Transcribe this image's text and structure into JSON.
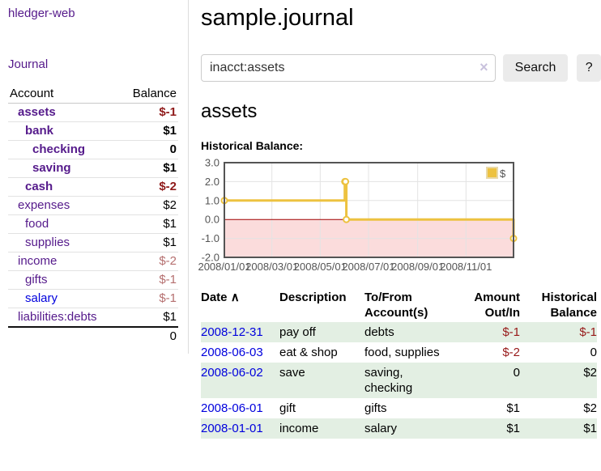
{
  "sidebar": {
    "app_title": "hledger-web",
    "journal_link": "Journal",
    "accounts_table": {
      "account_header": "Account",
      "balance_header": "Balance",
      "rows": [
        {
          "name": "assets",
          "balance": "$-1",
          "depth": 1,
          "bold": true,
          "balance_class": "neg-strong"
        },
        {
          "name": "bank",
          "balance": "$1",
          "depth": 2,
          "bold": true,
          "balance_class": ""
        },
        {
          "name": "checking",
          "balance": "0",
          "depth": 3,
          "bold": true,
          "balance_class": ""
        },
        {
          "name": "saving",
          "balance": "$1",
          "depth": 3,
          "bold": true,
          "balance_class": ""
        },
        {
          "name": "cash",
          "balance": "$-2",
          "depth": 2,
          "bold": true,
          "balance_class": "neg-strong"
        },
        {
          "name": "expenses",
          "balance": "$2",
          "depth": 1,
          "bold": false,
          "balance_class": ""
        },
        {
          "name": "food",
          "balance": "$1",
          "depth": 2,
          "bold": false,
          "balance_class": ""
        },
        {
          "name": "supplies",
          "balance": "$1",
          "depth": 2,
          "bold": false,
          "balance_class": ""
        },
        {
          "name": "income",
          "balance": "$-2",
          "depth": 1,
          "bold": false,
          "balance_class": "neg-soft"
        },
        {
          "name": "gifts",
          "balance": "$-1",
          "depth": 2,
          "bold": false,
          "balance_class": "neg-soft"
        },
        {
          "name": "salary",
          "balance": "$-1",
          "depth": 2,
          "bold": false,
          "balance_class": "neg-soft",
          "unvisited": true
        },
        {
          "name": "liabilities:debts",
          "balance": "$1",
          "depth": 1,
          "bold": false,
          "balance_class": ""
        }
      ],
      "total": "0"
    }
  },
  "main": {
    "title": "sample.journal",
    "search": {
      "value": "inacct:assets",
      "clear_icon": "×",
      "button_label": "Search",
      "help_label": "?"
    },
    "account_heading": "assets",
    "chart_title": "Historical Balance:",
    "register": {
      "headers": {
        "date": "Date",
        "sort_indicator": "∧",
        "description": "Description",
        "accounts": "To/From Account(s)",
        "amount": "Amount Out/In",
        "balance": "Historical Balance"
      },
      "rows": [
        {
          "date": "2008-12-31",
          "description": "pay off",
          "accounts": "debts",
          "amount": "$-1",
          "balance": "$-1",
          "amount_neg": true,
          "balance_neg": true
        },
        {
          "date": "2008-06-03",
          "description": "eat & shop",
          "accounts": "food, supplies",
          "amount": "$-2",
          "balance": "0",
          "amount_neg": true,
          "balance_neg": false
        },
        {
          "date": "2008-06-02",
          "description": "save",
          "accounts": "saving, checking",
          "amount": "0",
          "balance": "$2",
          "amount_neg": false,
          "balance_neg": false
        },
        {
          "date": "2008-06-01",
          "description": "gift",
          "accounts": "gifts",
          "amount": "$1",
          "balance": "$2",
          "amount_neg": false,
          "balance_neg": false
        },
        {
          "date": "2008-01-01",
          "description": "income",
          "accounts": "salary",
          "amount": "$1",
          "balance": "$1",
          "amount_neg": false,
          "balance_neg": false
        }
      ]
    }
  },
  "chart_data": {
    "type": "line",
    "steps": true,
    "title": "Historical Balance:",
    "series": [
      {
        "name": "$",
        "color": "#edc240",
        "points": [
          [
            "2008-01-01",
            1
          ],
          [
            "2008-06-01",
            2
          ],
          [
            "2008-06-02",
            2
          ],
          [
            "2008-06-03",
            0
          ],
          [
            "2008-12-31",
            -1
          ]
        ]
      }
    ],
    "x_range": [
      "2008-01-01",
      "2008-12-31"
    ],
    "ylim": [
      -2,
      3
    ],
    "y_ticks": [
      "3.0",
      "2.0",
      "1.0",
      "0.0",
      "-1.0",
      "-2.0"
    ],
    "x_tick_dates": [
      "2008-01-01",
      "2008-03-01",
      "2008-05-01",
      "2008-07-01",
      "2008-09-01",
      "2008-11-01"
    ],
    "x_tick_labels": [
      "2008/01/01",
      "2008/03/01",
      "2008/05/01",
      "2008/07/01",
      "2008/09/01",
      "2008/11/01"
    ],
    "legend_position": "top-right",
    "grid": true,
    "negative_region_color": "#fbdcdc",
    "zero_line_color": "#a00000",
    "grid_color": "#e3e3e3",
    "border_color": "#545454",
    "tick_label_color": "#545454"
  },
  "colors": {
    "link_purple": "#551a8b",
    "link_blue": "#0000dd",
    "negative_strong": "#8f1a1a",
    "negative_soft": "#b56f6f",
    "table_negative": "#971919",
    "row_green": "#e3efe3",
    "series_gold": "#edc240"
  }
}
